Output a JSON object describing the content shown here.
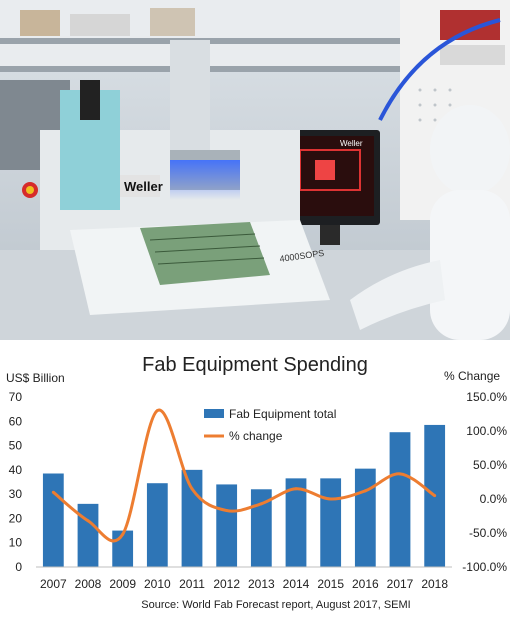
{
  "photo": {
    "machine_brand": "Weller",
    "monitor_brand": "Weller",
    "board_label": "4000SOPS"
  },
  "chart_data": {
    "type": "bar",
    "title": "Fab Equipment Spending",
    "y_left_label": "US$ Billion",
    "y_right_label": "% Change",
    "categories": [
      "2007",
      "2008",
      "2009",
      "2010",
      "2011",
      "2012",
      "2013",
      "2014",
      "2015",
      "2016",
      "2017",
      "2018"
    ],
    "y_left_ticks": [
      "0",
      "10",
      "20",
      "30",
      "40",
      "50",
      "60",
      "70"
    ],
    "y_right_ticks": [
      "-100.0%",
      "-50.0%",
      "0.0%",
      "50.0%",
      "100.0%",
      "150.0%"
    ],
    "ylim_left": [
      0,
      70
    ],
    "ylim_right": [
      -100,
      150
    ],
    "series": [
      {
        "name": "Fab Equipment total",
        "type": "bar",
        "color": "#2e75b6",
        "values": [
          38.5,
          26,
          15,
          34.5,
          40,
          34,
          32,
          36.5,
          36.5,
          40.5,
          55.5,
          58.5
        ]
      },
      {
        "name": "% change",
        "type": "line",
        "color": "#ed7d31",
        "axis": "right",
        "values": [
          10,
          -32,
          -52,
          130,
          15,
          -17,
          -7,
          15,
          0,
          12,
          37,
          5
        ]
      }
    ],
    "legend_position": "top-right",
    "source": "Source: World Fab Forecast report, August 2017, SEMI"
  }
}
